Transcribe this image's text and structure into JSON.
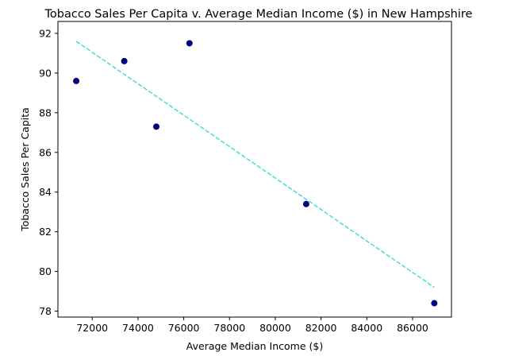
{
  "chart_data": {
    "type": "scatter",
    "title": "Tobacco Sales Per Capita v. Average Median Income ($) in New Hampshire",
    "xlabel": "Average Median Income ($)",
    "ylabel": "Tobacco Sales Per Capita",
    "xlim": [
      70500,
      87700
    ],
    "ylim": [
      77.7,
      92.6
    ],
    "xticks": [
      72000,
      74000,
      76000,
      78000,
      80000,
      82000,
      84000,
      86000
    ],
    "yticks": [
      78,
      80,
      82,
      84,
      86,
      88,
      90,
      92
    ],
    "grid": false,
    "points": [
      {
        "x": 71300,
        "y": 89.6
      },
      {
        "x": 73400,
        "y": 90.6
      },
      {
        "x": 74800,
        "y": 87.3
      },
      {
        "x": 76250,
        "y": 91.5
      },
      {
        "x": 81350,
        "y": 83.4
      },
      {
        "x": 86950,
        "y": 78.4
      }
    ],
    "trendline": {
      "x": [
        71300,
        86950
      ],
      "y": [
        91.6,
        79.2
      ]
    },
    "point_color": "#000080",
    "trend_color": "#40E0D0"
  }
}
